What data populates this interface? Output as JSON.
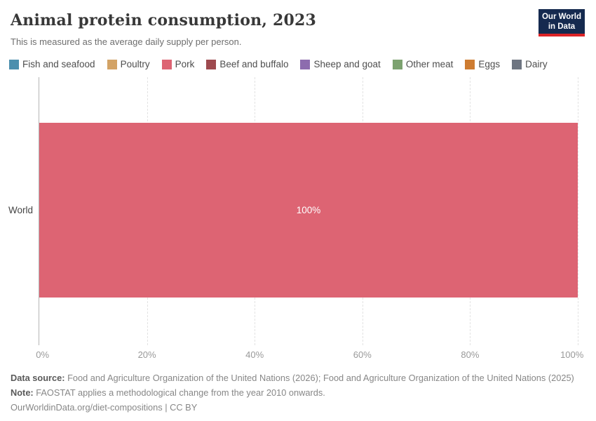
{
  "header": {
    "title": "Animal protein consumption, 2023",
    "subtitle": "This is measured as the average daily supply per person.",
    "logo": {
      "line1": "Our World",
      "line2": "in Data",
      "bg_color": "#152a4f",
      "stripe_color": "#dc2327"
    }
  },
  "legend": {
    "items": [
      {
        "label": "Fish and seafood",
        "color": "#4c8fae"
      },
      {
        "label": "Poultry",
        "color": "#d3a366"
      },
      {
        "label": "Pork",
        "color": "#dd6473"
      },
      {
        "label": "Beef and buffalo",
        "color": "#9e4a4f"
      },
      {
        "label": "Sheep and goat",
        "color": "#8d6cae"
      },
      {
        "label": "Other meat",
        "color": "#7ca26f"
      },
      {
        "label": "Eggs",
        "color": "#ce7c31"
      },
      {
        "label": "Dairy",
        "color": "#6e7581"
      }
    ]
  },
  "chart_data": {
    "type": "bar",
    "orientation": "horizontal",
    "title": "Animal protein consumption, 2023",
    "categories": [
      "World"
    ],
    "series": [
      {
        "name": "Pork",
        "values": [
          100
        ],
        "color": "#dd6473"
      }
    ],
    "bar_label": "100%",
    "x_ticks": [
      "0%",
      "20%",
      "40%",
      "60%",
      "80%",
      "100%"
    ],
    "xlim": [
      0,
      100
    ],
    "grid": "dashed-vertical",
    "legend_position": "top"
  },
  "footer": {
    "source_label": "Data source:",
    "source_text": " Food and Agriculture Organization of the United Nations (2026); Food and Agriculture Organization of the United Nations (2025)",
    "note_label": "Note:",
    "note_text": " FAOSTAT applies a methodological change from the year 2010 onwards.",
    "link": "OurWorldinData.org/diet-compositions | CC BY"
  }
}
